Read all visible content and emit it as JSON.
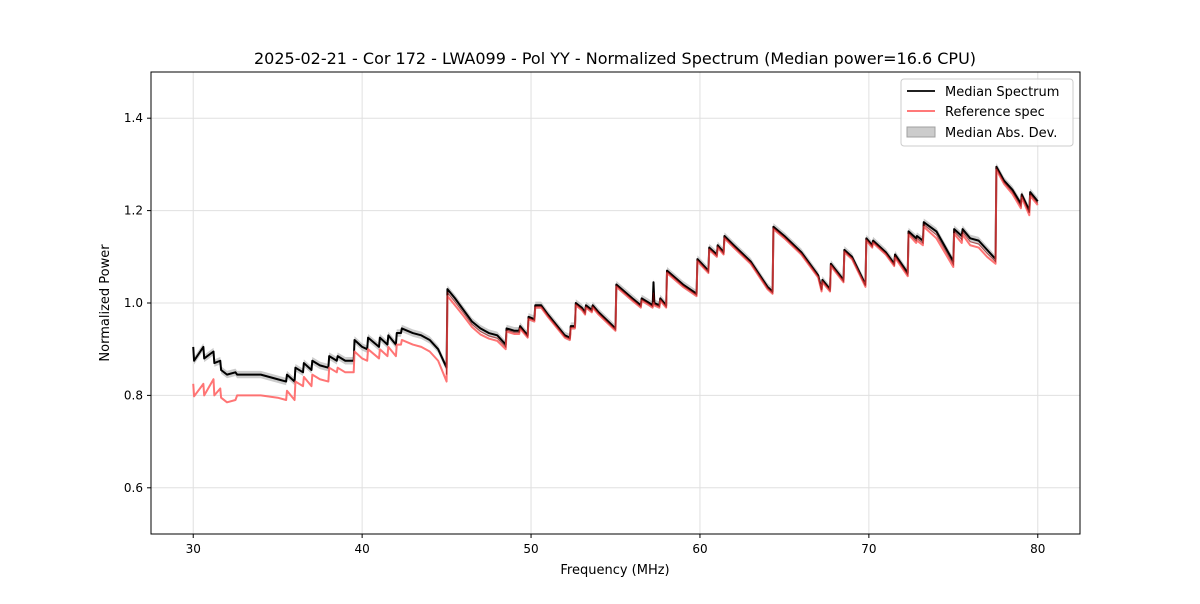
{
  "chart_data": {
    "type": "line",
    "title": "2025-02-21 - Cor 172 - LWA099 - Pol YY - Normalized Spectrum (Median power=16.6 CPU)",
    "xlabel": "Frequency (MHz)",
    "ylabel": "Normalized Power",
    "xlim": [
      27.5,
      82.5
    ],
    "ylim": [
      0.5,
      1.5
    ],
    "xticks": [
      30,
      40,
      50,
      60,
      70,
      80
    ],
    "yticks": [
      0.6,
      0.8,
      1.0,
      1.2,
      1.4
    ],
    "xtick_labels": [
      "30",
      "40",
      "50",
      "60",
      "70",
      "80"
    ],
    "ytick_labels": [
      "0.6",
      "0.8",
      "1.0",
      "1.2",
      "1.4"
    ],
    "grid": true,
    "legend_position": "top-right",
    "legend": [
      "Median Spectrum",
      "Reference spec",
      "Median Abs. Dev."
    ],
    "colors": {
      "median": "#000000",
      "reference": "#ff6666",
      "mad": "#bfbfbf",
      "overlap": "#8b0000"
    },
    "mad_approx": 0.008,
    "points_columns": [
      "freq_mhz",
      "median",
      "reference"
    ],
    "points": [
      [
        30.0,
        0.905,
        0.825
      ],
      [
        30.05,
        0.875,
        0.798
      ],
      [
        30.6,
        0.905,
        0.825
      ],
      [
        30.65,
        0.88,
        0.8
      ],
      [
        31.2,
        0.895,
        0.835
      ],
      [
        31.25,
        0.87,
        0.8
      ],
      [
        31.6,
        0.875,
        0.815
      ],
      [
        31.65,
        0.855,
        0.795
      ],
      [
        32.0,
        0.845,
        0.785
      ],
      [
        32.5,
        0.85,
        0.79
      ],
      [
        32.6,
        0.845,
        0.8
      ],
      [
        33,
        0.845,
        0.8
      ],
      [
        34,
        0.845,
        0.8
      ],
      [
        35,
        0.835,
        0.795
      ],
      [
        35.5,
        0.83,
        0.79
      ],
      [
        35.55,
        0.845,
        0.81
      ],
      [
        36.0,
        0.83,
        0.79
      ],
      [
        36.05,
        0.86,
        0.83
      ],
      [
        36.5,
        0.85,
        0.82
      ],
      [
        36.55,
        0.87,
        0.84
      ],
      [
        37,
        0.855,
        0.82
      ],
      [
        37.05,
        0.875,
        0.845
      ],
      [
        37.5,
        0.865,
        0.835
      ],
      [
        38,
        0.86,
        0.83
      ],
      [
        38.05,
        0.885,
        0.86
      ],
      [
        38.5,
        0.875,
        0.85
      ],
      [
        38.55,
        0.885,
        0.86
      ],
      [
        39,
        0.875,
        0.85
      ],
      [
        39.5,
        0.875,
        0.85
      ],
      [
        39.55,
        0.92,
        0.895
      ],
      [
        40,
        0.905,
        0.88
      ],
      [
        40.3,
        0.9,
        0.875
      ],
      [
        40.35,
        0.925,
        0.9
      ],
      [
        41,
        0.905,
        0.88
      ],
      [
        41.05,
        0.925,
        0.9
      ],
      [
        41.5,
        0.91,
        0.885
      ],
      [
        41.55,
        0.93,
        0.905
      ],
      [
        42,
        0.91,
        0.885
      ],
      [
        42.05,
        0.935,
        0.91
      ],
      [
        42.3,
        0.935,
        0.91
      ],
      [
        42.35,
        0.945,
        0.92
      ],
      [
        43,
        0.935,
        0.91
      ],
      [
        43.5,
        0.93,
        0.905
      ],
      [
        44,
        0.92,
        0.895
      ],
      [
        44.5,
        0.9,
        0.875
      ],
      [
        45.0,
        0.86,
        0.83
      ],
      [
        45.05,
        1.03,
        1.015
      ],
      [
        45.5,
        1.01,
        0.995
      ],
      [
        46,
        0.985,
        0.972
      ],
      [
        46.5,
        0.96,
        0.948
      ],
      [
        47,
        0.945,
        0.932
      ],
      [
        47.5,
        0.935,
        0.923
      ],
      [
        48,
        0.93,
        0.918
      ],
      [
        48.5,
        0.91,
        0.9
      ],
      [
        48.55,
        0.945,
        0.938
      ],
      [
        49,
        0.94,
        0.933
      ],
      [
        49.3,
        0.94,
        0.933
      ],
      [
        49.35,
        0.95,
        0.944
      ],
      [
        49.8,
        0.93,
        0.925
      ],
      [
        49.85,
        0.97,
        0.965
      ],
      [
        50.2,
        0.965,
        0.96
      ],
      [
        50.25,
        0.995,
        0.99
      ],
      [
        50.6,
        0.995,
        0.99
      ],
      [
        51,
        0.975,
        0.97
      ],
      [
        52,
        0.93,
        0.925
      ],
      [
        52.3,
        0.925,
        0.92
      ],
      [
        52.35,
        0.95,
        0.945
      ],
      [
        52.6,
        0.95,
        0.945
      ],
      [
        52.65,
        1.0,
        0.995
      ],
      [
        53,
        0.99,
        0.985
      ],
      [
        53.2,
        0.98,
        0.975
      ],
      [
        53.25,
        0.995,
        0.99
      ],
      [
        53.6,
        0.985,
        0.98
      ],
      [
        53.65,
        0.995,
        0.99
      ],
      [
        54,
        0.98,
        0.975
      ],
      [
        55,
        0.945,
        0.94
      ],
      [
        55.05,
        1.04,
        1.035
      ],
      [
        56,
        1.01,
        1.005
      ],
      [
        56.5,
        0.995,
        0.99
      ],
      [
        56.55,
        1.01,
        1.005
      ],
      [
        57,
        1.0,
        0.995
      ],
      [
        57.2,
        0.995,
        0.99
      ],
      [
        57.25,
        1.045,
        1.0
      ],
      [
        57.3,
        1.0,
        0.995
      ],
      [
        57.6,
        0.995,
        0.99
      ],
      [
        57.65,
        1.01,
        1.005
      ],
      [
        58,
        0.995,
        0.99
      ],
      [
        58.05,
        1.07,
        1.065
      ],
      [
        59,
        1.04,
        1.035
      ],
      [
        59.8,
        1.02,
        1.015
      ],
      [
        59.85,
        1.095,
        1.09
      ],
      [
        60.5,
        1.07,
        1.065
      ],
      [
        60.55,
        1.12,
        1.115
      ],
      [
        61,
        1.105,
        1.1
      ],
      [
        61.05,
        1.125,
        1.12
      ],
      [
        61.4,
        1.11,
        1.105
      ],
      [
        61.45,
        1.145,
        1.14
      ],
      [
        62,
        1.125,
        1.12
      ],
      [
        63,
        1.09,
        1.085
      ],
      [
        64,
        1.035,
        1.03
      ],
      [
        64.3,
        1.025,
        1.02
      ],
      [
        64.35,
        1.165,
        1.16
      ],
      [
        65,
        1.145,
        1.14
      ],
      [
        66,
        1.11,
        1.105
      ],
      [
        67,
        1.06,
        1.055
      ],
      [
        67.2,
        1.03,
        1.025
      ],
      [
        67.25,
        1.05,
        1.045
      ],
      [
        67.7,
        1.03,
        1.025
      ],
      [
        67.75,
        1.085,
        1.08
      ],
      [
        68.5,
        1.05,
        1.045
      ],
      [
        68.55,
        1.115,
        1.11
      ],
      [
        69,
        1.1,
        1.095
      ],
      [
        69.8,
        1.04,
        1.035
      ],
      [
        69.85,
        1.14,
        1.135
      ],
      [
        70.2,
        1.125,
        1.12
      ],
      [
        70.25,
        1.135,
        1.13
      ],
      [
        71,
        1.11,
        1.105
      ],
      [
        71.5,
        1.085,
        1.08
      ],
      [
        71.55,
        1.105,
        1.098
      ],
      [
        72.3,
        1.065,
        1.058
      ],
      [
        72.35,
        1.155,
        1.148
      ],
      [
        72.8,
        1.14,
        1.13
      ],
      [
        72.85,
        1.145,
        1.135
      ],
      [
        73.2,
        1.135,
        1.125
      ],
      [
        73.25,
        1.175,
        1.165
      ],
      [
        74,
        1.155,
        1.14
      ],
      [
        75,
        1.09,
        1.078
      ],
      [
        75.05,
        1.16,
        1.15
      ],
      [
        75.5,
        1.145,
        1.13
      ],
      [
        75.55,
        1.16,
        1.148
      ],
      [
        76,
        1.14,
        1.125
      ],
      [
        76.5,
        1.135,
        1.12
      ],
      [
        77,
        1.115,
        1.1
      ],
      [
        77.5,
        1.095,
        1.085
      ],
      [
        77.55,
        1.295,
        1.288
      ],
      [
        78,
        1.265,
        1.258
      ],
      [
        78.5,
        1.245,
        1.236
      ],
      [
        79,
        1.215,
        1.205
      ],
      [
        79.05,
        1.235,
        1.228
      ],
      [
        79.5,
        1.2,
        1.19
      ],
      [
        79.55,
        1.24,
        1.232
      ],
      [
        80,
        1.22,
        1.212
      ]
    ]
  }
}
